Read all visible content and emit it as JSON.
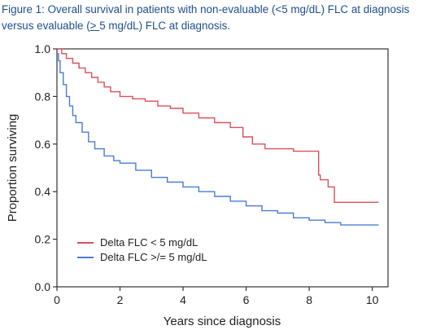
{
  "figure": {
    "caption_part1": "Figure 1: Overall survival in patients with non-evaluable (<5 mg/dL) FLC at diagnosis versus evaluable (",
    "caption_ge": "> ",
    "caption_part2": "5 mg/dL) FLC at diagnosis."
  },
  "chart_data": {
    "type": "line",
    "step": true,
    "xlabel": "Years since diagnosis",
    "ylabel": "Proportion surviving",
    "xlim": [
      0,
      10.5
    ],
    "ylim": [
      0,
      1.0
    ],
    "x_ticks": [
      0,
      2,
      4,
      6,
      8,
      10
    ],
    "x_tick_labels": [
      "0",
      "2",
      "4",
      "6",
      "8",
      "10"
    ],
    "y_ticks": [
      0.0,
      0.2,
      0.4,
      0.6,
      0.8,
      1.0
    ],
    "y_tick_labels": [
      "0.0",
      "0.2",
      "0.4",
      "0.6",
      "0.8",
      "1.0"
    ],
    "grid": false,
    "legend_position": "bottom-left",
    "series": [
      {
        "name": "Delta FLC < 5 mg/dL",
        "color": "#d9505a",
        "x": [
          0,
          0.15,
          0.3,
          0.5,
          0.7,
          0.9,
          1.1,
          1.3,
          1.5,
          1.7,
          2.0,
          2.4,
          2.8,
          3.2,
          3.6,
          4.0,
          4.5,
          5.0,
          5.5,
          5.9,
          6.2,
          6.6,
          7.0,
          7.5,
          8.0,
          8.3,
          8.35,
          8.6,
          8.8,
          9.2,
          10.2
        ],
        "y": [
          1.0,
          0.98,
          0.96,
          0.94,
          0.92,
          0.9,
          0.88,
          0.86,
          0.84,
          0.82,
          0.8,
          0.79,
          0.78,
          0.76,
          0.75,
          0.73,
          0.71,
          0.69,
          0.67,
          0.63,
          0.6,
          0.58,
          0.58,
          0.57,
          0.57,
          0.47,
          0.45,
          0.42,
          0.355,
          0.355,
          0.355
        ]
      },
      {
        "name": "Delta FLC >/= 5 mg/dL",
        "color": "#4a7bd6",
        "x": [
          0,
          0.05,
          0.1,
          0.2,
          0.3,
          0.4,
          0.5,
          0.6,
          0.8,
          1.0,
          1.2,
          1.5,
          1.8,
          2.0,
          2.5,
          3.0,
          3.5,
          4.0,
          4.5,
          5.0,
          5.5,
          6.0,
          6.5,
          7.0,
          7.5,
          8.0,
          8.5,
          9.0,
          10.2
        ],
        "y": [
          0.98,
          0.95,
          0.9,
          0.85,
          0.8,
          0.76,
          0.72,
          0.69,
          0.65,
          0.61,
          0.58,
          0.55,
          0.53,
          0.52,
          0.49,
          0.46,
          0.44,
          0.42,
          0.4,
          0.38,
          0.36,
          0.34,
          0.32,
          0.31,
          0.29,
          0.28,
          0.27,
          0.26,
          0.26
        ]
      }
    ]
  }
}
